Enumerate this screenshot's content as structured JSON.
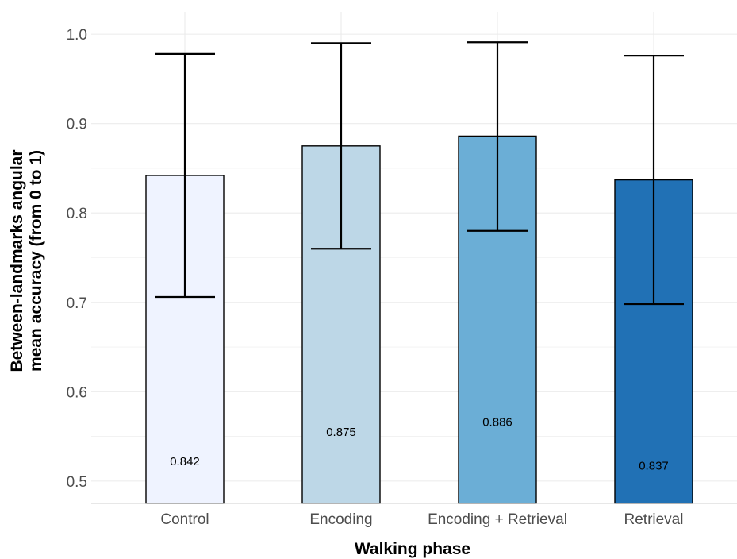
{
  "chart_data": {
    "type": "bar",
    "title": "",
    "xlabel": "Walking phase",
    "ylabel_lines": [
      "Between-landmarks angular",
      "mean accuracy (from 0 to 1)"
    ],
    "categories": [
      "Control",
      "Encoding",
      "Encoding + Retrieval",
      "Retrieval"
    ],
    "values": [
      0.842,
      0.875,
      0.886,
      0.837
    ],
    "value_labels": [
      "0.842",
      "0.875",
      "0.886",
      "0.837"
    ],
    "error_low": [
      0.706,
      0.76,
      0.78,
      0.698
    ],
    "error_high": [
      0.978,
      0.99,
      0.991,
      0.976
    ],
    "ylim": [
      0.475,
      1.025
    ],
    "yticks": [
      0.5,
      0.6,
      0.7,
      0.8,
      0.9,
      1.0
    ],
    "ytick_labels": [
      "0.5",
      "0.6",
      "0.7",
      "0.8",
      "0.9",
      "1.0"
    ],
    "grid": true,
    "legend": "none",
    "bar_colors": [
      "#eff3ff",
      "#bdd7e7",
      "#6baed6",
      "#2171b5"
    ],
    "grid_color": "#ebebeb"
  }
}
